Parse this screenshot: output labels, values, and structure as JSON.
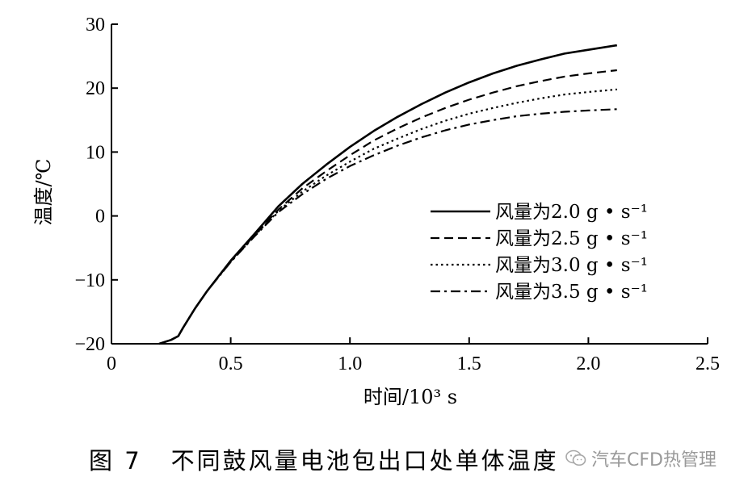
{
  "chart_data": {
    "type": "line",
    "xlabel": "时间/10³ s",
    "ylabel": "温度/℃",
    "xlim": [
      0,
      2.5
    ],
    "ylim": [
      -20,
      30
    ],
    "xticks": [
      "0",
      "0.5",
      "1.0",
      "1.5",
      "2.0",
      "2.5"
    ],
    "yticks": [
      "−20",
      "−10",
      "0",
      "10",
      "20",
      "30"
    ],
    "grid": false,
    "legend_position": "right",
    "series": [
      {
        "name": "风量为2.0 g • s⁻¹",
        "style": "solid",
        "x": [
          0.2,
          0.25,
          0.28,
          0.3,
          0.35,
          0.4,
          0.5,
          0.6,
          0.7,
          0.8,
          0.9,
          1.0,
          1.1,
          1.2,
          1.3,
          1.4,
          1.5,
          1.6,
          1.7,
          1.8,
          1.9,
          2.0,
          2.12
        ],
        "y": [
          -20,
          -19.4,
          -18.8,
          -17.5,
          -14.5,
          -11.8,
          -7.0,
          -2.8,
          1.5,
          5.0,
          8.0,
          10.8,
          13.3,
          15.5,
          17.5,
          19.3,
          20.9,
          22.3,
          23.5,
          24.5,
          25.4,
          26.0,
          26.7
        ]
      },
      {
        "name": "风量为2.5 g • s⁻¹",
        "style": "dashed",
        "x": [
          0.2,
          0.25,
          0.28,
          0.3,
          0.35,
          0.4,
          0.5,
          0.6,
          0.7,
          0.8,
          0.9,
          1.0,
          1.1,
          1.2,
          1.3,
          1.4,
          1.5,
          1.6,
          1.7,
          1.8,
          1.9,
          2.0,
          2.12
        ],
        "y": [
          -20,
          -19.4,
          -18.8,
          -17.5,
          -14.5,
          -11.8,
          -7.1,
          -3.0,
          1.0,
          4.3,
          7.0,
          9.5,
          11.8,
          13.7,
          15.4,
          16.9,
          18.2,
          19.3,
          20.3,
          21.1,
          21.8,
          22.3,
          22.8
        ]
      },
      {
        "name": "风量为3.0 g • s⁻¹",
        "style": "dotted",
        "x": [
          0.2,
          0.25,
          0.28,
          0.3,
          0.35,
          0.4,
          0.5,
          0.6,
          0.7,
          0.8,
          0.9,
          1.0,
          1.1,
          1.2,
          1.3,
          1.4,
          1.5,
          1.6,
          1.7,
          1.8,
          1.9,
          2.0,
          2.12
        ],
        "y": [
          -20,
          -19.4,
          -18.8,
          -17.5,
          -14.5,
          -11.8,
          -7.2,
          -3.1,
          0.8,
          3.8,
          6.3,
          8.5,
          10.5,
          12.1,
          13.6,
          14.9,
          16.0,
          16.9,
          17.7,
          18.4,
          19.0,
          19.4,
          19.8
        ]
      },
      {
        "name": "风量为3.5 g • s⁻¹",
        "style": "dashdot",
        "x": [
          0.2,
          0.25,
          0.28,
          0.3,
          0.35,
          0.4,
          0.5,
          0.6,
          0.7,
          0.8,
          0.9,
          1.0,
          1.1,
          1.2,
          1.3,
          1.4,
          1.5,
          1.6,
          1.7,
          1.8,
          1.9,
          2.0,
          2.12
        ],
        "y": [
          -20,
          -19.4,
          -18.8,
          -17.5,
          -14.5,
          -11.8,
          -7.2,
          -3.2,
          0.6,
          3.4,
          5.8,
          7.8,
          9.5,
          11.0,
          12.3,
          13.4,
          14.3,
          15.0,
          15.6,
          16.0,
          16.3,
          16.5,
          16.7
        ]
      }
    ]
  },
  "caption": {
    "figure_no": "图 7",
    "text": "不同鼓风量电池包出口处单体温度"
  },
  "watermark": {
    "text": "汽车CFD热管理",
    "icon": "wechat-icon"
  }
}
